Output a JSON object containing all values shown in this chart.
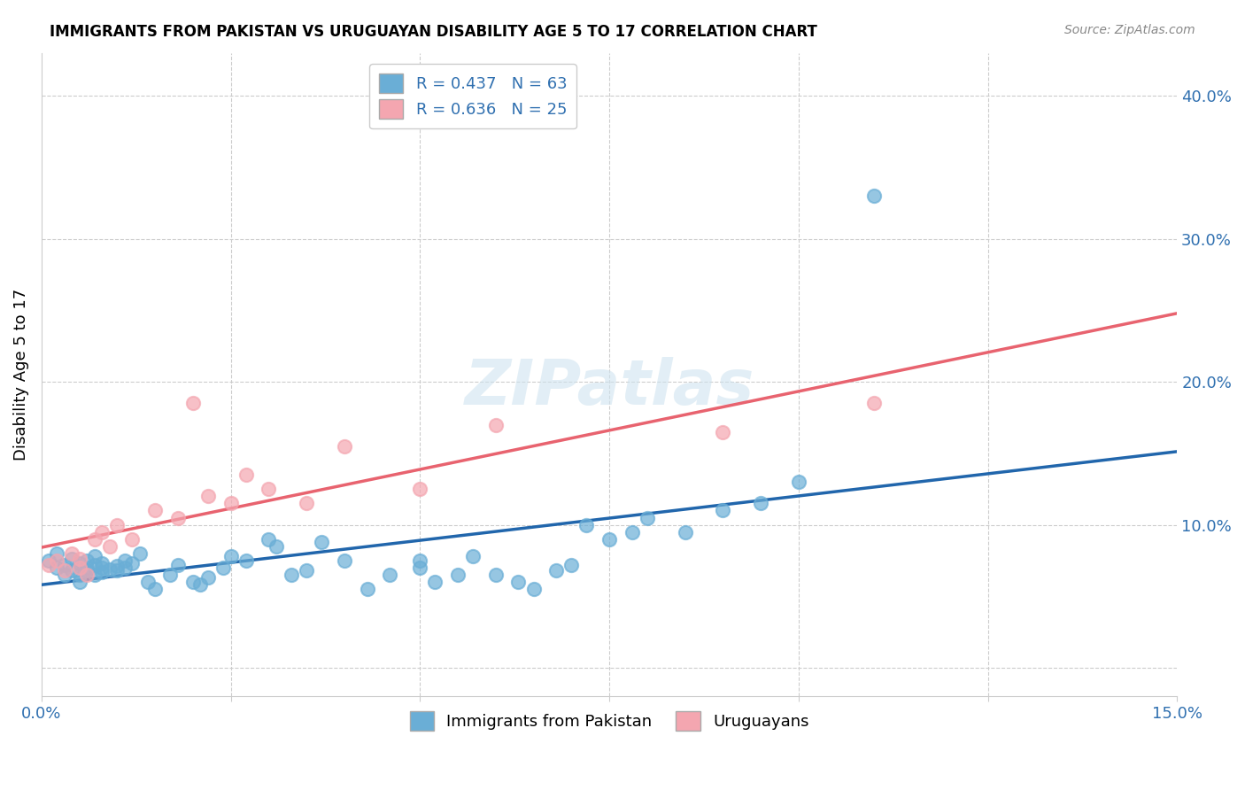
{
  "title": "IMMIGRANTS FROM PAKISTAN VS URUGUAYAN DISABILITY AGE 5 TO 17 CORRELATION CHART",
  "source": "Source: ZipAtlas.com",
  "ylabel": "Disability Age 5 to 17",
  "xlim": [
    0.0,
    0.15
  ],
  "ylim": [
    -0.02,
    0.43
  ],
  "legend_r1": "R = 0.437",
  "legend_n1": "N = 63",
  "legend_r2": "R = 0.636",
  "legend_n2": "N = 25",
  "color_pakistan": "#6aaed6",
  "color_uruguayan": "#f4a6b0",
  "color_pakistan_line": "#2166ac",
  "color_uruguayan_line": "#e8636f",
  "watermark": "ZIPatlas",
  "pakistan_x": [
    0.001,
    0.002,
    0.002,
    0.003,
    0.003,
    0.004,
    0.004,
    0.005,
    0.005,
    0.005,
    0.006,
    0.006,
    0.006,
    0.007,
    0.007,
    0.007,
    0.008,
    0.008,
    0.008,
    0.009,
    0.01,
    0.01,
    0.011,
    0.011,
    0.012,
    0.013,
    0.014,
    0.015,
    0.017,
    0.018,
    0.02,
    0.021,
    0.022,
    0.024,
    0.025,
    0.027,
    0.03,
    0.031,
    0.033,
    0.035,
    0.037,
    0.04,
    0.043,
    0.046,
    0.05,
    0.05,
    0.052,
    0.055,
    0.057,
    0.06,
    0.063,
    0.065,
    0.068,
    0.07,
    0.072,
    0.075,
    0.078,
    0.08,
    0.085,
    0.09,
    0.095,
    0.1,
    0.11
  ],
  "pakistan_y": [
    0.075,
    0.07,
    0.08,
    0.065,
    0.072,
    0.068,
    0.076,
    0.06,
    0.073,
    0.065,
    0.07,
    0.075,
    0.068,
    0.065,
    0.072,
    0.078,
    0.067,
    0.07,
    0.073,
    0.069,
    0.071,
    0.068,
    0.07,
    0.075,
    0.073,
    0.08,
    0.06,
    0.055,
    0.065,
    0.072,
    0.06,
    0.058,
    0.063,
    0.07,
    0.078,
    0.075,
    0.09,
    0.085,
    0.065,
    0.068,
    0.088,
    0.075,
    0.055,
    0.065,
    0.07,
    0.075,
    0.06,
    0.065,
    0.078,
    0.065,
    0.06,
    0.055,
    0.068,
    0.072,
    0.1,
    0.09,
    0.095,
    0.105,
    0.095,
    0.11,
    0.115,
    0.13,
    0.33
  ],
  "uruguayan_x": [
    0.001,
    0.002,
    0.003,
    0.004,
    0.005,
    0.005,
    0.006,
    0.007,
    0.008,
    0.009,
    0.01,
    0.012,
    0.015,
    0.018,
    0.02,
    0.022,
    0.025,
    0.027,
    0.03,
    0.035,
    0.04,
    0.05,
    0.06,
    0.09,
    0.11
  ],
  "uruguayan_y": [
    0.072,
    0.075,
    0.068,
    0.08,
    0.07,
    0.076,
    0.065,
    0.09,
    0.095,
    0.085,
    0.1,
    0.09,
    0.11,
    0.105,
    0.185,
    0.12,
    0.115,
    0.135,
    0.125,
    0.115,
    0.155,
    0.125,
    0.17,
    0.165,
    0.185
  ]
}
